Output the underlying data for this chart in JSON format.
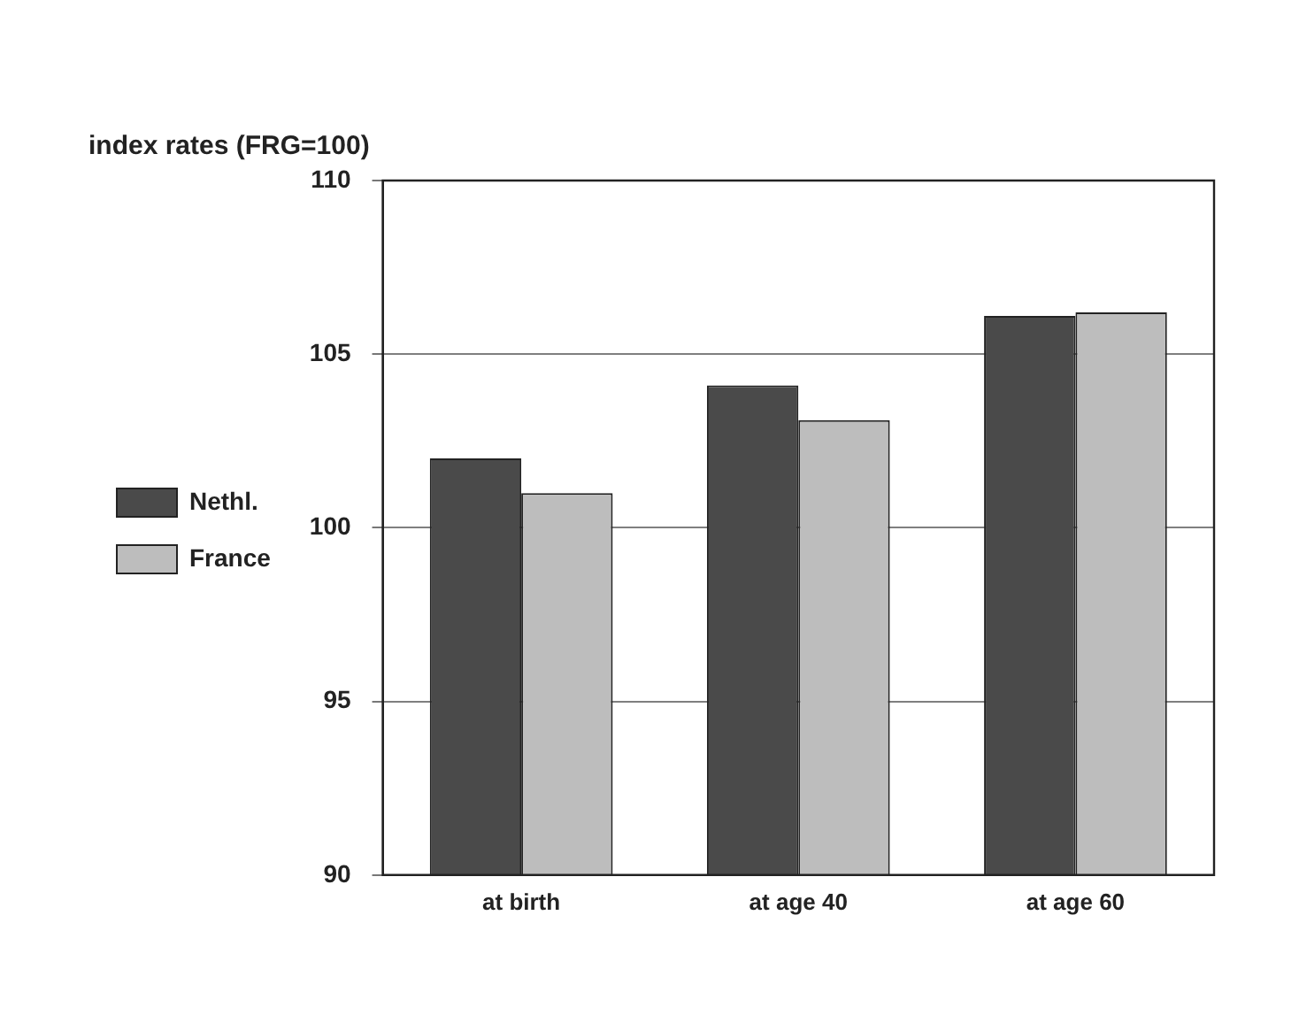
{
  "chart_data": {
    "type": "bar",
    "title": "index rates (FRG=100)",
    "categories": [
      "at birth",
      "at age 40",
      "at age 60"
    ],
    "series": [
      {
        "name": "Nethl.",
        "color": "#4a4a4a",
        "values": [
          102.0,
          104.1,
          106.1
        ]
      },
      {
        "name": "France",
        "color": "#bdbdbd",
        "values": [
          101.0,
          103.1,
          106.2
        ]
      }
    ],
    "ylim": [
      90,
      110
    ],
    "yticks": [
      90,
      95,
      100,
      105,
      110
    ],
    "grid": "y",
    "legend": "left"
  }
}
